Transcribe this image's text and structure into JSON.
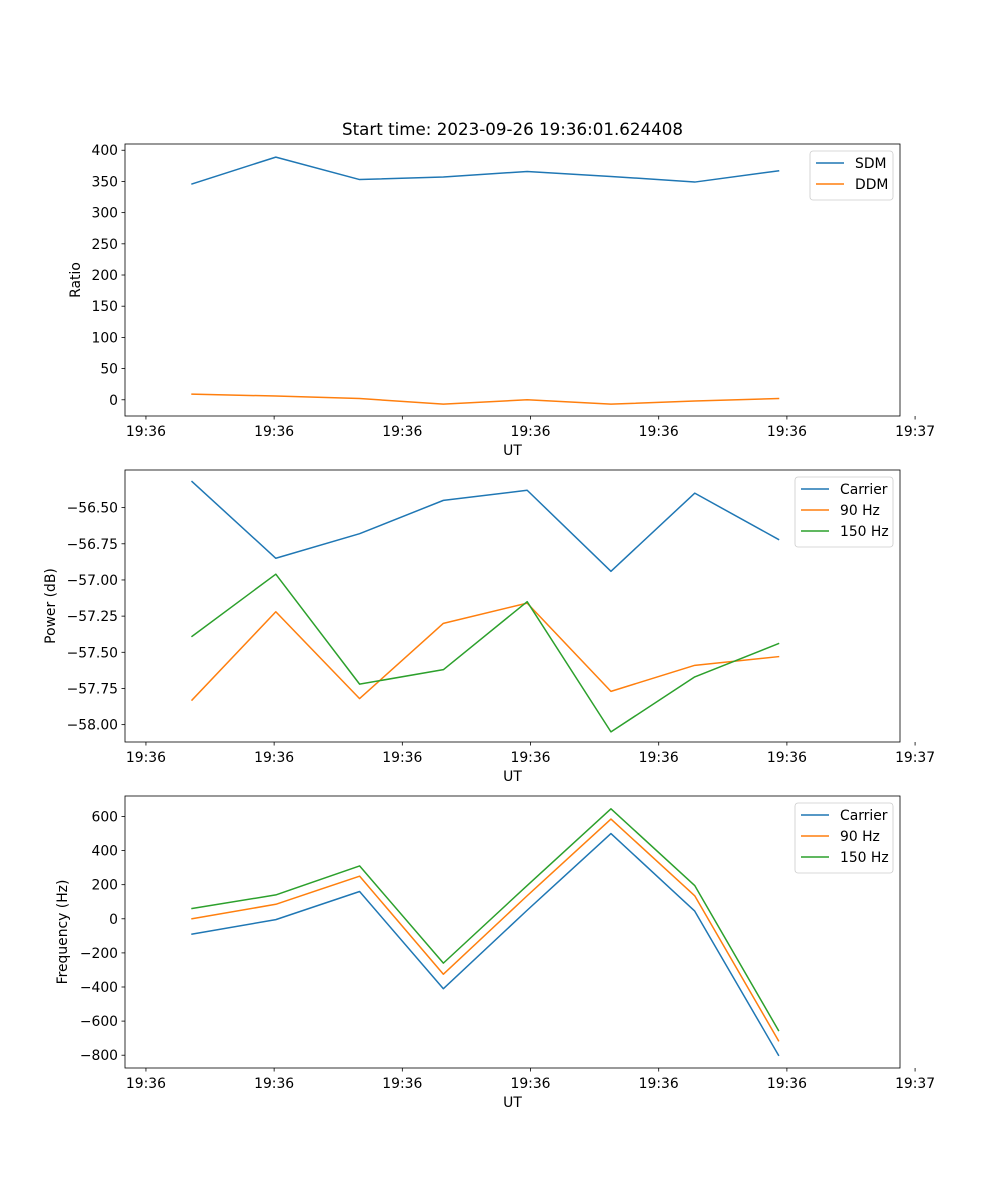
{
  "chart_data": [
    {
      "type": "line",
      "title": "Start time: 2023-09-26 19:36:01.624408",
      "xlabel": "UT",
      "ylabel": "Ratio",
      "x": [
        1,
        2,
        3,
        4,
        5,
        6,
        7,
        8
      ],
      "xlim": [
        0.2,
        9.45
      ],
      "x_ticks": [
        0.45,
        1.98,
        3.51,
        5.04,
        6.57,
        8.1,
        9.63
      ],
      "x_tick_labels": [
        "19:36",
        "19:36",
        "19:36",
        "19:36",
        "19:36",
        "19:36",
        "19:37"
      ],
      "ylim": [
        -26,
        410
      ],
      "y_ticks": [
        0,
        50,
        100,
        150,
        200,
        250,
        300,
        350,
        400
      ],
      "y_tick_labels": [
        "0",
        "50",
        "100",
        "150",
        "200",
        "250",
        "300",
        "350",
        "400"
      ],
      "grid": false,
      "legend_position": "top-right",
      "series": [
        {
          "name": "SDM",
          "color": "#1f77b4",
          "values": [
            346,
            389,
            353,
            357,
            366,
            358,
            349,
            367
          ]
        },
        {
          "name": "DDM",
          "color": "#ff7f0e",
          "values": [
            9,
            6,
            2,
            -7,
            0,
            -7,
            -2,
            2
          ]
        }
      ]
    },
    {
      "type": "line",
      "title": "",
      "xlabel": "UT",
      "ylabel": "Power (dB)",
      "x": [
        1,
        2,
        3,
        4,
        5,
        6,
        7,
        8
      ],
      "xlim": [
        0.2,
        9.45
      ],
      "x_ticks": [
        0.45,
        1.98,
        3.51,
        5.04,
        6.57,
        8.1,
        9.63
      ],
      "x_tick_labels": [
        "19:36",
        "19:36",
        "19:36",
        "19:36",
        "19:36",
        "19:36",
        "19:37"
      ],
      "ylim": [
        -58.12,
        -56.24
      ],
      "y_ticks": [
        -58.0,
        -57.75,
        -57.5,
        -57.25,
        -57.0,
        -56.75,
        -56.5
      ],
      "y_tick_labels": [
        "−58.00",
        "−57.75",
        "−57.50",
        "−57.25",
        "−57.00",
        "−56.75",
        "−56.50"
      ],
      "grid": false,
      "legend_position": "top-right",
      "series": [
        {
          "name": "Carrier",
          "color": "#1f77b4",
          "values": [
            -56.32,
            -56.85,
            -56.68,
            -56.45,
            -56.38,
            -56.94,
            -56.4,
            -56.72
          ]
        },
        {
          "name": "90 Hz",
          "color": "#ff7f0e",
          "values": [
            -57.83,
            -57.22,
            -57.82,
            -57.3,
            -57.16,
            -57.77,
            -57.59,
            -57.53
          ]
        },
        {
          "name": "150 Hz",
          "color": "#2ca02c",
          "values": [
            -57.39,
            -56.96,
            -57.72,
            -57.62,
            -57.15,
            -58.05,
            -57.67,
            -57.44
          ]
        }
      ]
    },
    {
      "type": "line",
      "title": "",
      "xlabel": "UT",
      "ylabel": "Frequency (Hz)",
      "x": [
        1,
        2,
        3,
        4,
        5,
        6,
        7,
        8
      ],
      "xlim": [
        0.2,
        9.45
      ],
      "x_ticks": [
        0.45,
        1.98,
        3.51,
        5.04,
        6.57,
        8.1,
        9.63
      ],
      "x_tick_labels": [
        "19:36",
        "19:36",
        "19:36",
        "19:36",
        "19:36",
        "19:36",
        "19:37"
      ],
      "ylim": [
        -875,
        720
      ],
      "y_ticks": [
        -800,
        -600,
        -400,
        -200,
        0,
        200,
        400,
        600
      ],
      "y_tick_labels": [
        "−800",
        "−600",
        "−400",
        "−200",
        "0",
        "200",
        "400",
        "600"
      ],
      "grid": false,
      "legend_position": "top-right",
      "series": [
        {
          "name": "Carrier",
          "color": "#1f77b4",
          "values": [
            -90,
            -5,
            160,
            -410,
            50,
            500,
            45,
            -800
          ]
        },
        {
          "name": "90 Hz",
          "color": "#ff7f0e",
          "values": [
            0,
            85,
            250,
            -325,
            135,
            585,
            135,
            -715
          ]
        },
        {
          "name": "150 Hz",
          "color": "#2ca02c",
          "values": [
            60,
            140,
            310,
            -260,
            195,
            645,
            195,
            -655
          ]
        }
      ]
    }
  ]
}
